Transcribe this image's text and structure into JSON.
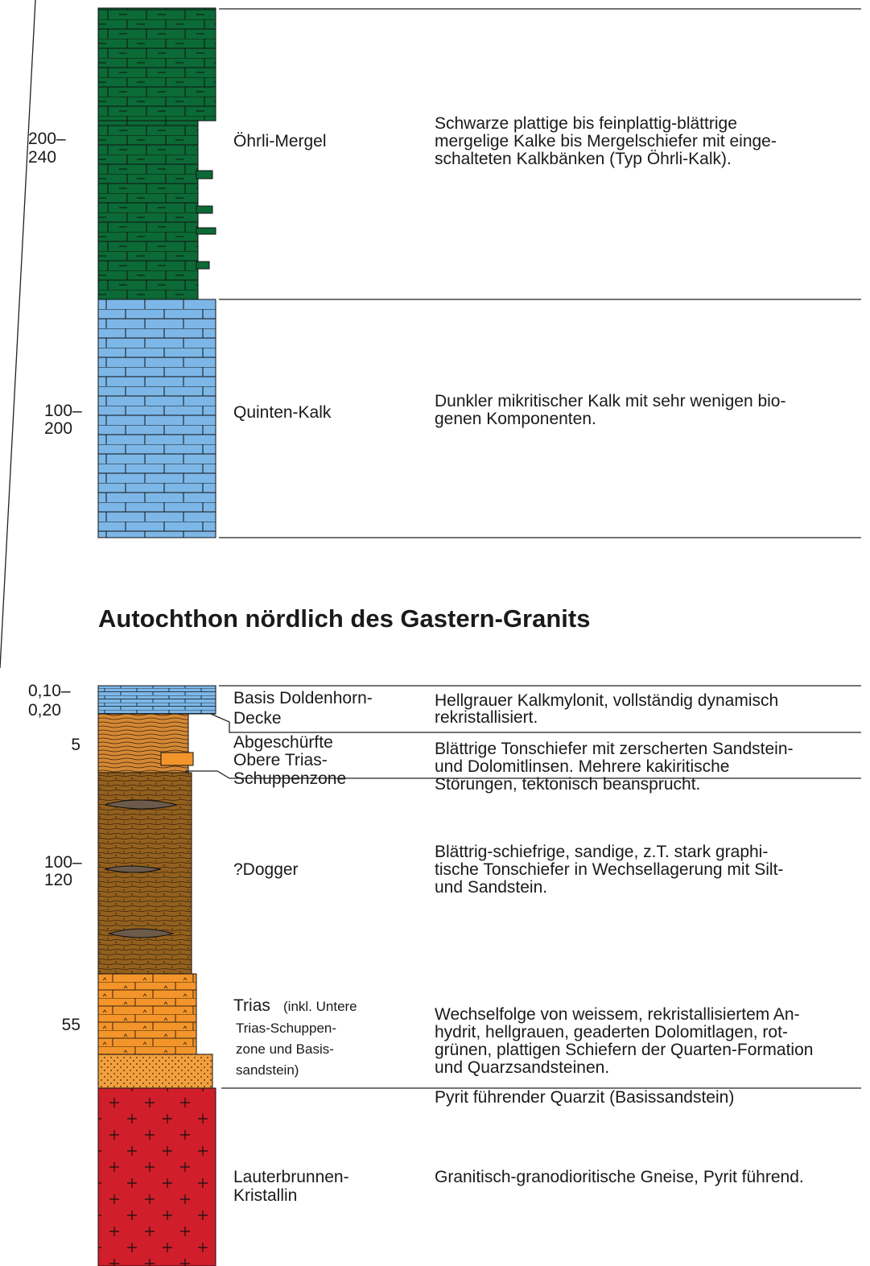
{
  "upper": {
    "units": [
      {
        "thickness": [
          "200–",
          "240"
        ],
        "name": [
          "Öhrli-Mergel"
        ],
        "description": [
          "Schwarze plattige bis feinplattig-blättrige",
          "mergelige Kalke bis Mergelschiefer mit einge-",
          "schalteten Kalkbänken (Typ Öhrli-Kalk)."
        ]
      },
      {
        "thickness": [
          "100–",
          "200"
        ],
        "name": [
          "Quinten-Kalk"
        ],
        "description": [
          "Dunkler mikritischer Kalk mit sehr wenigen bio-",
          "genen Komponenten."
        ]
      }
    ]
  },
  "section_title": "Autochthon nördlich des Gastern-Granits",
  "lower": {
    "units": [
      {
        "thickness": [
          "0,10–",
          "0,20"
        ],
        "name": [
          "Basis Doldenhorn-",
          "Decke"
        ],
        "description": [
          "Hellgrauer Kalkmylonit, vollständig dynamisch",
          "rekristallisiert."
        ]
      },
      {
        "thickness": [
          "5"
        ],
        "name": [
          "Abgeschürfte",
          "Obere Trias-",
          "Schuppenzone"
        ],
        "description": [
          "Blättrige Tonschiefer mit zerscherten Sandstein-",
          "und Dolomitlinsen. Mehrere kakiritische",
          "Störungen, tektonisch beansprucht."
        ]
      },
      {
        "thickness": [
          "100–",
          "120"
        ],
        "name": [
          "?Dogger"
        ],
        "description": [
          "Blättrig-schiefrige, sandige, z.T. stark graphi-",
          "tische Tonschiefer in Wechsellagerung mit Silt-",
          "und Sandstein."
        ]
      },
      {
        "thickness": [
          "55"
        ],
        "name": [
          "Trias"
        ],
        "note": [
          "(inkl. Untere",
          "Trias-Schuppen-",
          "zone und Basis-",
          "sandstein)"
        ],
        "description": [
          "Wechselfolge von weissem, rekristallisiertem An-",
          "hydrit, hellgrauen, geaderten Dolomitlagen, rot-",
          "grünen, plattigen Schiefern der Quarten-Formation",
          "und Quarzsandsteinen."
        ],
        "extra_description": "Pyrit führender Quarzit (Basissandstein)"
      },
      {
        "name": [
          "Lauterbrunnen-",
          "Kristallin"
        ],
        "description": [
          "Granitisch-granodioritische Gneise, Pyrit führend."
        ]
      }
    ]
  }
}
